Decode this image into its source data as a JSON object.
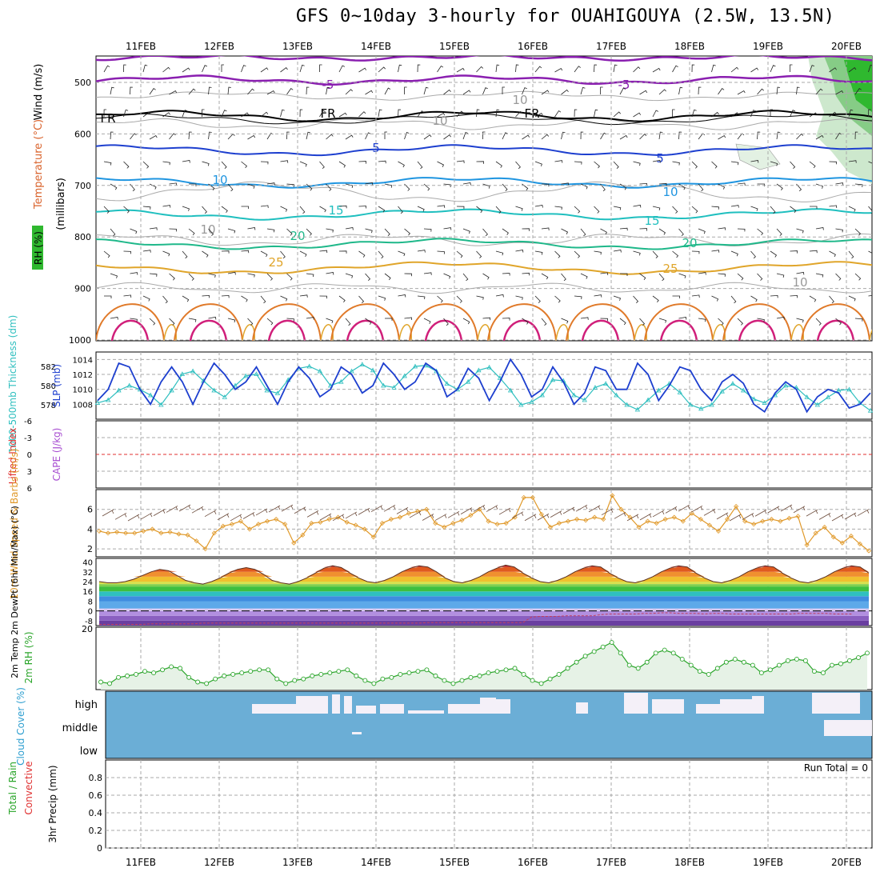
{
  "title": "GFS 0~10day 3-hourly for OUAHIGOUYA (2.5W, 13.5N)",
  "colors": {
    "temperature": "#d9622b",
    "wind": "#9a2fb0",
    "rh": "#2aa52a",
    "slp": "#1d3fcf",
    "thickness": "#2fbfbf",
    "cape": "#a84fd1",
    "lifted": "#e03030",
    "wind10": "#e0992a",
    "cloud": "#6baed6",
    "precip_total": "#2aa52a",
    "precip_conv": "#e03030"
  },
  "chart_data": [
    {
      "type": "line",
      "panel": "upper-air",
      "x": [
        "11FEB",
        "12FEB",
        "13FEB",
        "14FEB",
        "15FEB",
        "16FEB",
        "17FEB",
        "18FEB",
        "19FEB",
        "20FEB"
      ],
      "ylabel_parts": [
        "RH (%)",
        "Temperature (°C)",
        "Wind (m/s)",
        "(millibars)"
      ],
      "y_ticks": [
        500,
        600,
        700,
        800,
        900,
        1000
      ],
      "contour_labels": [
        "-5",
        "-5",
        "FR",
        "FR",
        "FR",
        "5",
        "5",
        "10",
        "10",
        "15",
        "15",
        "20",
        "20",
        "25",
        "25",
        "10",
        "10",
        "10",
        "10"
      ]
    },
    {
      "type": "line",
      "panel": "pressure",
      "ylabel_left": "1000-500mb Thickness (dm)",
      "ylabel_right": "SLP (mb)",
      "left_ticks": [
        "582",
        "580",
        "578"
      ],
      "right_ticks": [
        "1014",
        "1012",
        "1010",
        "1008"
      ],
      "series": [
        {
          "name": "SLP (mb)",
          "values": [
            1008.5,
            1010,
            1013.5,
            1013,
            1010,
            1008,
            1011,
            1013,
            1011,
            1008,
            1011,
            1013.5,
            1012,
            1010,
            1011,
            1013,
            1010.5,
            1008,
            1011,
            1013,
            1011.5,
            1009,
            1010,
            1013,
            1012,
            1009.5,
            1010.5,
            1013.5,
            1012,
            1010,
            1011,
            1013.5,
            1012.5,
            1009,
            1010,
            1012.8,
            1011.5,
            1008.5,
            1011,
            1014,
            1012,
            1009,
            1010,
            1013,
            1011,
            1008,
            1009.5,
            1013,
            1012.5,
            1010,
            1010,
            1013.5,
            1012,
            1008.5,
            1010.5,
            1013,
            1012.5,
            1010,
            1008.5,
            1011,
            1012,
            1010.8,
            1008,
            1007,
            1009.5,
            1011,
            1010,
            1007,
            1009,
            1010,
            1009.5,
            1007.5,
            1008,
            1009.5
          ]
        },
        {
          "name": "1000-500mb Thickness (dm)",
          "values": [
            578.2,
            578.5,
            579.5,
            580,
            579.6,
            579,
            578,
            579.5,
            581.2,
            581.5,
            580.5,
            579.5,
            578.8,
            580,
            581,
            581.2,
            579.5,
            579.2,
            580.6,
            581.8,
            582,
            581.5,
            580,
            580.4,
            581.5,
            582.2,
            581.6,
            580,
            579.8,
            581,
            582,
            582.1,
            581.5,
            580.2,
            579.6,
            580.4,
            581.6,
            581.9,
            580.8,
            579.5,
            578,
            578.3,
            579,
            580.6,
            580.5,
            579,
            578.5,
            579.8,
            580.2,
            579,
            578,
            577.5,
            578.5,
            579.5,
            580.2,
            579.3,
            578,
            577.6,
            578,
            579.4,
            580.2,
            579.5,
            578.6,
            578.2,
            579,
            580,
            579.8,
            578.8,
            578,
            578.8,
            579.5,
            579.6,
            578.2,
            577.4
          ]
        }
      ]
    },
    {
      "type": "line",
      "panel": "stability",
      "ylabel_left": "Lifted Index",
      "ylabel_right": "CAPE (J/kg)",
      "y_ticks": [
        "-6",
        "-3",
        "0",
        "3",
        "6"
      ],
      "series": [
        {
          "name": "Lifted Index",
          "values": []
        }
      ]
    },
    {
      "type": "line",
      "panel": "wind10m",
      "ylabel": "10m Wind Speed & Barbs (m/s)",
      "y_ticks": [
        "6",
        "4",
        "2"
      ],
      "series": [
        {
          "name": "10m Wind Speed",
          "values": [
            3.8,
            3.6,
            3.7,
            3.6,
            3.6,
            3.8,
            4,
            3.6,
            3.7,
            3.5,
            3.4,
            2.8,
            2,
            3.6,
            4.3,
            4.5,
            4.8,
            4,
            4.5,
            4.8,
            5,
            4.5,
            2.6,
            3.4,
            4.6,
            4.7,
            5,
            5.2,
            4.7,
            4.4,
            4,
            3.2,
            4.6,
            5,
            5.2,
            5.6,
            5.8,
            6,
            4.6,
            4.2,
            4.6,
            4.9,
            5.4,
            6,
            4.8,
            4.5,
            4.6,
            5.2,
            7.2,
            7.2,
            5.5,
            4.2,
            4.6,
            4.8,
            5,
            4.9,
            5.2,
            5,
            7.4,
            6,
            5.2,
            4.2,
            4.8,
            4.6,
            5,
            5.2,
            4.8,
            5.6,
            5,
            4.4,
            3.8,
            5,
            6.3,
            4.8,
            4.5,
            4.8,
            5,
            4.8,
            5.1,
            5.3,
            2.4,
            3.6,
            4.2,
            3.2,
            2.6,
            3.3,
            2.5,
            1.8
          ]
        }
      ]
    },
    {
      "type": "area",
      "panel": "temperature2m",
      "ylabel": "2m Temp 2m DewPt (6hr Min/Max) (°C)",
      "y_ticks": [
        "40",
        "32",
        "24",
        "16",
        "8",
        "0",
        "-8"
      ],
      "series": [
        {
          "name": "2m Temp",
          "values": [
            24,
            23,
            23,
            24,
            26,
            29,
            32,
            34,
            33,
            29,
            25,
            23,
            22,
            24,
            27,
            31,
            34,
            35.5,
            34,
            30,
            25,
            23,
            22,
            24,
            27,
            31,
            35,
            37,
            35.5,
            31,
            27,
            24,
            23,
            25,
            28,
            32,
            35,
            37,
            36,
            32,
            27,
            24,
            23,
            25,
            28,
            32,
            35,
            37.5,
            36,
            31,
            27,
            24,
            23,
            25,
            28,
            32,
            35,
            37,
            36,
            31,
            27,
            24,
            23,
            25,
            28,
            32,
            35,
            37,
            36,
            31,
            27,
            24,
            23,
            25,
            28,
            32,
            35,
            37,
            36,
            31,
            27,
            24,
            23,
            25,
            28,
            32,
            35,
            37,
            36,
            31
          ]
        },
        {
          "name": "2m DewPt",
          "values": [
            -11,
            -11,
            -11,
            -11,
            -11,
            -11,
            -10.5,
            -10.5,
            -10.5,
            -10.5,
            -10.5,
            -10.5,
            -10,
            -10,
            -10,
            -10,
            -10,
            -10,
            -10,
            -10,
            -10,
            -10,
            -10,
            -10,
            -10,
            -10,
            -10,
            -10,
            -10,
            -10,
            -10,
            -10,
            -10,
            -10,
            -10,
            -10,
            -10,
            -10,
            -9.5,
            -9.5,
            -9.5,
            -9.5,
            -9.5,
            -9.5,
            -9.5,
            -9.5,
            -9.5,
            -9.5,
            -9.5,
            -9.5,
            -5,
            -4.5,
            -4.5,
            -4.5,
            -4,
            -4,
            -4,
            -4,
            -3,
            -2.5,
            -2.5,
            -2.5,
            -2.5,
            -2,
            -2,
            -1.5,
            -1.5,
            -2,
            -2,
            -2,
            -2.5,
            -2,
            -2,
            -2.5,
            -2.5,
            -2.5,
            -2.5,
            -2.5,
            -2.5,
            -2.5,
            -2.5,
            -2,
            -2,
            -2,
            -2,
            -2.5,
            -2.5,
            -2.5
          ]
        }
      ]
    },
    {
      "type": "line",
      "panel": "rh2m",
      "ylabel": "2m RH (%)",
      "y_ticks": [
        "20"
      ],
      "series": [
        {
          "name": "2m RH",
          "values": [
            2.5,
            2,
            4,
            4.5,
            5,
            6,
            5.5,
            6.5,
            7.5,
            7,
            4,
            2.5,
            2,
            3.5,
            4.5,
            5,
            5.5,
            6,
            6.5,
            6.5,
            3.5,
            2,
            3,
            3.5,
            4.5,
            5,
            5.5,
            6,
            6.5,
            4.5,
            3,
            2,
            3.5,
            4,
            5,
            5.5,
            6,
            6.5,
            4.5,
            3,
            2,
            3,
            4,
            4.5,
            5.5,
            6,
            6.5,
            7,
            5,
            3,
            2,
            3.5,
            5,
            7,
            9,
            11,
            12.5,
            14,
            15.5,
            12,
            8,
            7,
            9,
            12,
            13,
            12,
            10,
            8,
            6,
            5,
            7,
            9,
            10,
            9,
            8,
            5.5,
            6.5,
            8,
            9.5,
            10,
            9.5,
            6,
            5.5,
            8,
            8.5,
            9.5,
            10.5,
            12
          ]
        }
      ]
    },
    {
      "type": "bar",
      "panel": "cloud",
      "ylabel": "Cloud Cover (%)",
      "levels": [
        "high",
        "middle",
        "low"
      ]
    },
    {
      "type": "bar",
      "panel": "precip",
      "ylabel_parts": [
        "Total / Rain",
        "Convective",
        "3hr Precip (mm)"
      ],
      "y_ticks": [
        "0.8",
        "0.6",
        "0.4",
        "0.2",
        "0"
      ],
      "annotation": "Run Total = 0",
      "series": [
        {
          "name": "Total",
          "values": []
        }
      ]
    }
  ]
}
